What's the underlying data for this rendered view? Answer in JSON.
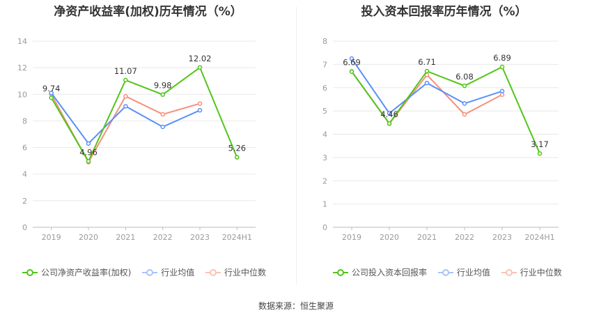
{
  "charts": [
    {
      "title": "净资产收益率(加权)历年情况（%）",
      "legend": [
        "公司净资产收益率(加权)",
        "行业均值",
        "行业中位数"
      ]
    },
    {
      "title": "投入资本回报率历年情况（%）",
      "legend": [
        "公司投入资本回报率",
        "行业均值",
        "行业中位数"
      ]
    }
  ],
  "source": "数据来源：恒生聚源",
  "colors": {
    "company": "#52c41a",
    "mean": "#5b8ff9",
    "median": "#f6907a",
    "grid": "#e8e8e8",
    "axis": "#999999"
  },
  "chart_data": [
    {
      "type": "line",
      "title": "净资产收益率(加权)历年情况（%）",
      "categories": [
        "2019",
        "2020",
        "2021",
        "2022",
        "2023",
        "2024H1"
      ],
      "ylim": [
        0,
        14
      ],
      "yticks": [
        0,
        2,
        4,
        6,
        8,
        10,
        12,
        14
      ],
      "grid": true,
      "legend_position": "bottom",
      "series": [
        {
          "name": "公司净资产收益率(加权)",
          "values": [
            9.74,
            4.96,
            11.07,
            9.98,
            12.02,
            5.26
          ],
          "labels": [
            "9.74",
            "4.96",
            "11.07",
            "9.98",
            "12.02",
            "5.26"
          ]
        },
        {
          "name": "行业均值",
          "values": [
            10.1,
            6.3,
            9.1,
            7.55,
            8.8,
            null
          ]
        },
        {
          "name": "行业中位数",
          "values": [
            10.0,
            4.9,
            9.85,
            8.5,
            9.3,
            null
          ]
        }
      ]
    },
    {
      "type": "line",
      "title": "投入资本回报率历年情况（%）",
      "categories": [
        "2019",
        "2020",
        "2021",
        "2022",
        "2023",
        "2024H1"
      ],
      "ylim": [
        0,
        8
      ],
      "yticks": [
        0,
        1,
        2,
        3,
        4,
        5,
        6,
        7,
        8
      ],
      "grid": true,
      "legend_position": "bottom",
      "series": [
        {
          "name": "公司投入资本回报率",
          "values": [
            6.69,
            4.46,
            6.71,
            6.08,
            6.89,
            3.17
          ],
          "labels": [
            "6.69",
            "4.46",
            "6.71",
            "6.08",
            "6.89",
            "3.17"
          ]
        },
        {
          "name": "行业均值",
          "values": [
            7.25,
            4.9,
            6.2,
            5.32,
            5.85,
            null
          ]
        },
        {
          "name": "行业中位数",
          "values": [
            6.7,
            4.45,
            6.55,
            4.85,
            5.7,
            null
          ]
        }
      ]
    }
  ]
}
